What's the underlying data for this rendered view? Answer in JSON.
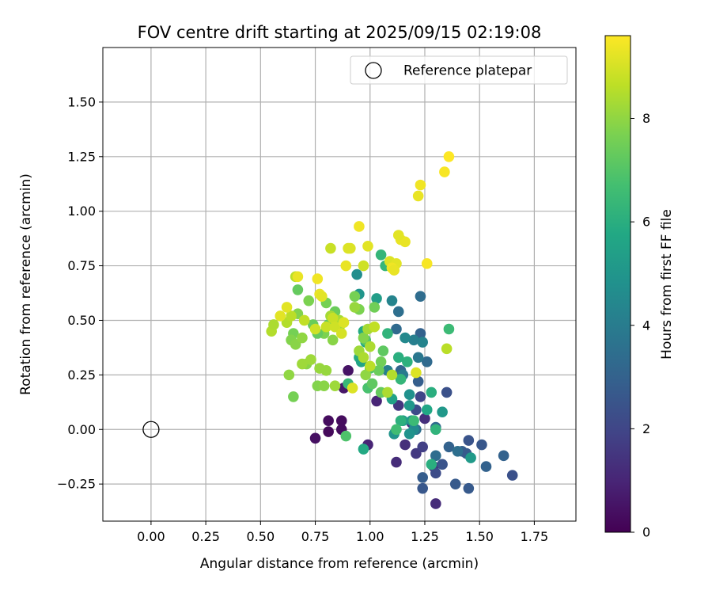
{
  "chart_data": {
    "type": "scatter",
    "title": "FOV centre drift starting at 2025/09/15 02:19:08",
    "xlabel": "Angular distance from reference (arcmin)",
    "ylabel": "Rotation from reference (arcmin)",
    "xlim": [
      -0.22,
      1.94
    ],
    "ylim": [
      -0.42,
      1.75
    ],
    "xticks": [
      "0.00",
      "0.25",
      "0.50",
      "0.75",
      "1.00",
      "1.25",
      "1.50",
      "1.75"
    ],
    "yticks": [
      "−0.25",
      "0.00",
      "0.25",
      "0.50",
      "0.75",
      "1.00",
      "1.25",
      "1.50"
    ],
    "grid": true,
    "legend": {
      "label": "Reference platepar",
      "placement": "top-right",
      "marker": "open-circle"
    },
    "reference_point": {
      "x": 0.0,
      "y": 0.0
    },
    "colorbar": {
      "label": "Hours from first FF file",
      "range": [
        0,
        9.6
      ],
      "ticks": [
        "0",
        "2",
        "4",
        "6",
        "8"
      ],
      "colormap": "viridis"
    },
    "points": [
      [
        0.75,
        -0.04,
        0.4
      ],
      [
        0.81,
        0.04,
        0.3
      ],
      [
        0.81,
        -0.01,
        0.2
      ],
      [
        0.87,
        0.04,
        0.3
      ],
      [
        0.87,
        0.0,
        0.3
      ],
      [
        0.88,
        0.19,
        0.6
      ],
      [
        0.9,
        0.27,
        0.5
      ],
      [
        0.99,
        -0.07,
        1.0
      ],
      [
        1.03,
        0.13,
        1.0
      ],
      [
        1.12,
        -0.15,
        1.2
      ],
      [
        1.13,
        0.11,
        1.5
      ],
      [
        1.16,
        -0.07,
        1.3
      ],
      [
        1.21,
        -0.11,
        1.6
      ],
      [
        1.25,
        0.05,
        1.3
      ],
      [
        1.3,
        -0.34,
        1.2
      ],
      [
        1.29,
        -0.17,
        1.4
      ],
      [
        1.19,
        0.03,
        1.2
      ],
      [
        1.24,
        -0.08,
        1.8
      ],
      [
        1.3,
        -0.2,
        2.2
      ],
      [
        1.35,
        0.17,
        2.4
      ],
      [
        1.24,
        -0.22,
        2.8
      ],
      [
        1.24,
        -0.27,
        2.6
      ],
      [
        1.45,
        -0.27,
        2.7
      ],
      [
        1.39,
        -0.25,
        2.7
      ],
      [
        1.33,
        -0.16,
        2.5
      ],
      [
        1.42,
        -0.1,
        2.9
      ],
      [
        1.44,
        -0.11,
        2.7
      ],
      [
        1.45,
        -0.05,
        2.5
      ],
      [
        1.51,
        -0.07,
        2.6
      ],
      [
        1.53,
        -0.17,
        3.0
      ],
      [
        1.61,
        -0.12,
        3.0
      ],
      [
        1.65,
        -0.21,
        2.4
      ],
      [
        1.3,
        -0.12,
        3.4
      ],
      [
        1.36,
        -0.08,
        3.0
      ],
      [
        1.4,
        -0.1,
        3.5
      ],
      [
        1.3,
        0.01,
        3.3
      ],
      [
        1.23,
        0.15,
        2.0
      ],
      [
        1.21,
        0.09,
        2.2
      ],
      [
        1.22,
        0.22,
        2.9
      ],
      [
        1.14,
        0.27,
        3.1
      ],
      [
        1.12,
        0.46,
        3.3
      ],
      [
        1.13,
        0.54,
        3.5
      ],
      [
        1.23,
        0.44,
        3.0
      ],
      [
        1.23,
        0.61,
        3.4
      ],
      [
        1.26,
        0.31,
        3.3
      ],
      [
        1.22,
        0.33,
        3.8
      ],
      [
        1.21,
        0.0,
        3.5
      ],
      [
        1.24,
        0.4,
        4.3
      ],
      [
        1.2,
        0.41,
        4.1
      ],
      [
        1.16,
        0.42,
        4.5
      ],
      [
        1.1,
        0.59,
        4.3
      ],
      [
        1.08,
        0.27,
        4.1
      ],
      [
        1.15,
        0.25,
        3.9
      ],
      [
        1.18,
        0.16,
        4.8
      ],
      [
        1.19,
        0.04,
        4.9
      ],
      [
        1.18,
        0.11,
        5.1
      ],
      [
        1.26,
        0.09,
        5.7
      ],
      [
        1.28,
        0.17,
        6.0
      ],
      [
        1.33,
        0.08,
        5.1
      ],
      [
        1.2,
        0.0,
        4.6
      ],
      [
        1.11,
        -0.02,
        5.0
      ],
      [
        1.18,
        -0.02,
        4.9
      ],
      [
        1.15,
        0.04,
        5.3
      ],
      [
        1.1,
        0.14,
        5.5
      ],
      [
        0.94,
        0.71,
        4.7
      ],
      [
        0.95,
        0.62,
        5.0
      ],
      [
        0.97,
        0.45,
        5.8
      ],
      [
        0.95,
        0.33,
        5.9
      ],
      [
        0.98,
        0.4,
        5.7
      ],
      [
        0.96,
        0.31,
        5.6
      ],
      [
        1.03,
        0.6,
        5.3
      ],
      [
        1.05,
        0.8,
        6.3
      ],
      [
        1.08,
        0.44,
        6.2
      ],
      [
        1.07,
        0.75,
        6.3
      ],
      [
        1.17,
        0.31,
        6.1
      ],
      [
        1.13,
        0.33,
        6.0
      ],
      [
        1.14,
        0.23,
        6.3
      ],
      [
        1.14,
        0.04,
        6.1
      ],
      [
        1.12,
        0.0,
        6.6
      ],
      [
        1.2,
        0.04,
        6.5
      ],
      [
        1.3,
        0.0,
        6.2
      ],
      [
        1.28,
        -0.16,
        6.0
      ],
      [
        1.36,
        0.46,
        6.5
      ],
      [
        1.46,
        -0.13,
        5.2
      ],
      [
        0.97,
        -0.09,
        5.8
      ],
      [
        0.9,
        0.21,
        6.4
      ],
      [
        0.89,
        -0.03,
        6.9
      ],
      [
        0.99,
        0.19,
        6.8
      ],
      [
        0.98,
        0.41,
        7.0
      ],
      [
        1.0,
        0.28,
        6.9
      ],
      [
        1.01,
        0.21,
        7.2
      ],
      [
        1.05,
        0.31,
        7.5
      ],
      [
        1.05,
        0.17,
        7.3
      ],
      [
        1.06,
        0.36,
        7.2
      ],
      [
        1.04,
        0.27,
        7.4
      ],
      [
        1.02,
        0.56,
        7.5
      ],
      [
        0.95,
        0.55,
        7.7
      ],
      [
        0.97,
        0.42,
        7.8
      ],
      [
        0.93,
        0.61,
        7.6
      ],
      [
        0.84,
        0.54,
        7.4
      ],
      [
        0.81,
        0.48,
        7.2
      ],
      [
        0.79,
        0.44,
        7.7
      ],
      [
        0.76,
        0.44,
        7.3
      ],
      [
        0.74,
        0.48,
        7.4
      ],
      [
        0.8,
        0.58,
        7.6
      ],
      [
        0.72,
        0.59,
        7.7
      ],
      [
        0.67,
        0.64,
        7.3
      ],
      [
        0.65,
        0.44,
        7.6
      ],
      [
        0.64,
        0.41,
        7.8
      ],
      [
        0.67,
        0.53,
        7.8
      ],
      [
        0.71,
        0.3,
        7.9
      ],
      [
        0.66,
        0.39,
        7.9
      ],
      [
        0.65,
        0.15,
        7.6
      ],
      [
        0.63,
        0.25,
        8.0
      ],
      [
        0.76,
        0.2,
        7.8
      ],
      [
        0.79,
        0.2,
        7.9
      ],
      [
        0.77,
        0.28,
        8.1
      ],
      [
        0.8,
        0.27,
        8.1
      ],
      [
        0.73,
        0.32,
        8.2
      ],
      [
        0.69,
        0.3,
        8.2
      ],
      [
        0.69,
        0.42,
        8.0
      ],
      [
        0.84,
        0.2,
        8.2
      ],
      [
        0.82,
        0.52,
        8.3
      ],
      [
        0.83,
        0.41,
        7.9
      ],
      [
        0.86,
        0.5,
        8.3
      ],
      [
        0.86,
        0.47,
        8.2
      ],
      [
        0.93,
        0.56,
        8.1
      ],
      [
        0.95,
        0.36,
        8.2
      ],
      [
        0.97,
        0.33,
        8.4
      ],
      [
        0.98,
        0.25,
        8.0
      ],
      [
        0.99,
        0.46,
        8.3
      ],
      [
        1.0,
        0.38,
        8.4
      ],
      [
        1.0,
        0.29,
        8.6
      ],
      [
        1.02,
        0.47,
        8.7
      ],
      [
        1.08,
        0.17,
        8.4
      ],
      [
        1.1,
        0.25,
        8.5
      ],
      [
        1.35,
        0.37,
        8.6
      ],
      [
        0.55,
        0.45,
        8.5
      ],
      [
        0.56,
        0.48,
        8.4
      ],
      [
        0.62,
        0.49,
        8.5
      ],
      [
        0.64,
        0.52,
        8.6
      ],
      [
        0.66,
        0.7,
        8.6
      ],
      [
        0.7,
        0.5,
        8.7
      ],
      [
        0.75,
        0.46,
        8.9
      ],
      [
        0.8,
        0.47,
        8.8
      ],
      [
        0.82,
        0.83,
        8.8
      ],
      [
        0.83,
        0.51,
        8.8
      ],
      [
        0.84,
        0.47,
        8.9
      ],
      [
        0.87,
        0.44,
        9.0
      ],
      [
        0.88,
        0.49,
        9.1
      ],
      [
        0.9,
        0.83,
        9.1
      ],
      [
        0.91,
        0.83,
        9.1
      ],
      [
        0.92,
        0.19,
        9.1
      ],
      [
        0.97,
        0.75,
        8.9
      ],
      [
        0.99,
        0.84,
        9.2
      ],
      [
        1.09,
        0.77,
        9.1
      ],
      [
        1.12,
        0.76,
        9.2
      ],
      [
        1.14,
        0.87,
        9.3
      ],
      [
        1.16,
        0.86,
        9.3
      ],
      [
        1.21,
        0.26,
        9.1
      ],
      [
        0.59,
        0.52,
        9.2
      ],
      [
        0.62,
        0.56,
        9.2
      ],
      [
        0.67,
        0.7,
        9.3
      ],
      [
        0.76,
        0.69,
        9.4
      ],
      [
        0.77,
        0.62,
        9.3
      ],
      [
        0.78,
        0.61,
        9.2
      ],
      [
        0.89,
        0.75,
        9.3
      ],
      [
        0.95,
        0.93,
        9.4
      ],
      [
        1.1,
        0.74,
        9.4
      ],
      [
        1.11,
        0.73,
        9.3
      ],
      [
        1.13,
        0.89,
        9.2
      ],
      [
        1.22,
        1.07,
        9.3
      ],
      [
        1.23,
        1.12,
        9.4
      ],
      [
        1.26,
        0.76,
        9.5
      ],
      [
        1.34,
        1.18,
        9.5
      ],
      [
        1.36,
        1.25,
        9.6
      ]
    ]
  }
}
